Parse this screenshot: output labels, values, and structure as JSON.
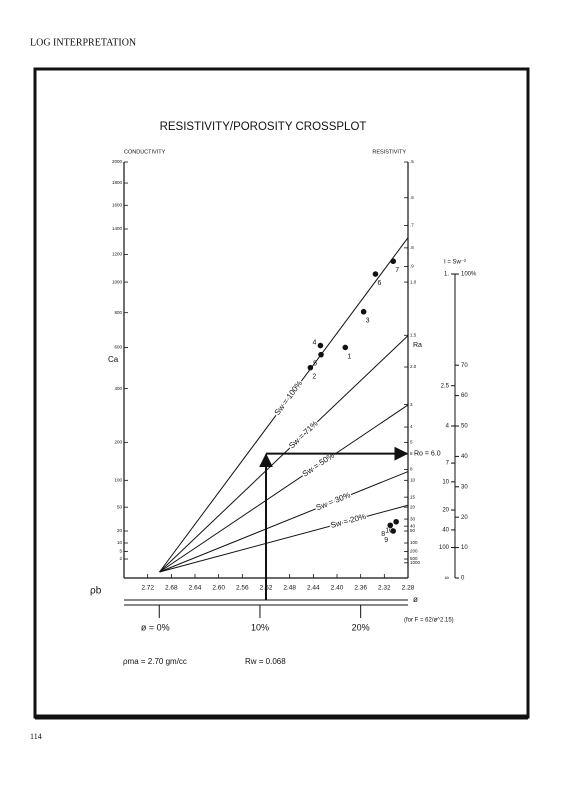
{
  "header": "LOG INTERPRETATION",
  "page_number": "114",
  "chart_data": {
    "type": "scatter",
    "title": "RESISTIVITY/POROSITY CROSSPLOT",
    "left_axis_label": "CONDUCTIVITY",
    "right_axis_label": "RESISTIVITY",
    "y_label": "Ca",
    "y2_label": "Ra",
    "x_label": "ρb",
    "y_scale": "sqrt",
    "xlim": [
      2.76,
      2.28
    ],
    "xticks": [
      2.72,
      2.68,
      2.64,
      {
        "value": 2.6,
        "label": "2.60"
      },
      2.56,
      2.52,
      2.48,
      2.44,
      {
        "value": 2.4,
        "label": "2.40"
      },
      2.36,
      2.32,
      2.28
    ],
    "ylim": [
      0,
      2000
    ],
    "yticks": [
      2000,
      1800,
      1600,
      1400,
      1200,
      1000,
      800,
      600,
      400,
      200,
      100,
      50,
      20,
      10,
      5,
      2
    ],
    "y2ticks": [
      {
        "value": 0.5,
        "label": ".5"
      },
      {
        "value": 0.6,
        "label": ".6"
      },
      {
        "value": 0.7,
        "label": ".7"
      },
      {
        "value": 0.8,
        "label": ".8"
      },
      {
        "value": 0.9,
        "label": ".9"
      },
      {
        "value": 1,
        "label": "1.0"
      },
      1.5,
      {
        "value": 2,
        "label": "2.0"
      },
      3,
      4,
      5,
      6,
      8,
      10,
      15,
      20,
      30,
      40,
      50,
      100,
      200,
      500,
      1000
    ],
    "point_labels": [
      "1",
      "2",
      "3",
      "4",
      "5",
      "6",
      "7",
      "8",
      "9",
      "10"
    ],
    "x": [
      2.386,
      2.445,
      2.355,
      2.428,
      2.427,
      2.335,
      2.305,
      2.31,
      2.305,
      2.3
    ],
    "values": [
      600,
      497,
      806,
      610,
      562,
      1056,
      1149,
      26,
      20,
      30
    ],
    "color": "#111111",
    "series": [
      {
        "name": "Sw = 100%",
        "x": [
          2.7,
          2.28
        ],
        "values": [
          0,
          1330
        ]
      },
      {
        "name": "Sw = 71%",
        "x": [
          2.7,
          2.28
        ],
        "values": [
          0,
          665
        ]
      },
      {
        "name": "Sw = 50%",
        "x": [
          2.7,
          2.28
        ],
        "values": [
          0,
          332
        ]
      },
      {
        "name": "Sw = 30%",
        "x": [
          2.7,
          2.28
        ],
        "values": [
          0,
          120
        ]
      },
      {
        "name": "Sw = 20%",
        "x": [
          2.7,
          2.28
        ],
        "values": [
          0,
          53
        ]
      }
    ],
    "annotation": {
      "x": 2.52,
      "value": 6.0,
      "label": "Ro = 6.0"
    },
    "porosity_axis": {
      "label": "ø",
      "xlim": [
        -3.5,
        24.7
      ],
      "ticks": [
        {
          "value": 0,
          "label": "ø = 0%"
        },
        {
          "value": 10,
          "label": "10%"
        },
        {
          "value": 20,
          "label": "20%"
        }
      ],
      "note": "(for F = 62/ø^2.15)"
    },
    "sw_scale": {
      "title": "I = Sw⁻²",
      "ylim": [
        0,
        100
      ],
      "ticks": [
        {
          "value": 100,
          "label": "100%"
        },
        70,
        60,
        50,
        40,
        30,
        20,
        10,
        0
      ],
      "ratio_ticks": [
        {
          "value": 1,
          "label": "1."
        },
        2.5,
        4,
        7,
        10,
        20,
        40,
        100
      ],
      "infinity_label": "∞"
    },
    "notes": [
      "ρma = 2.70 gm/cc",
      "Rw = 0.068"
    ]
  }
}
